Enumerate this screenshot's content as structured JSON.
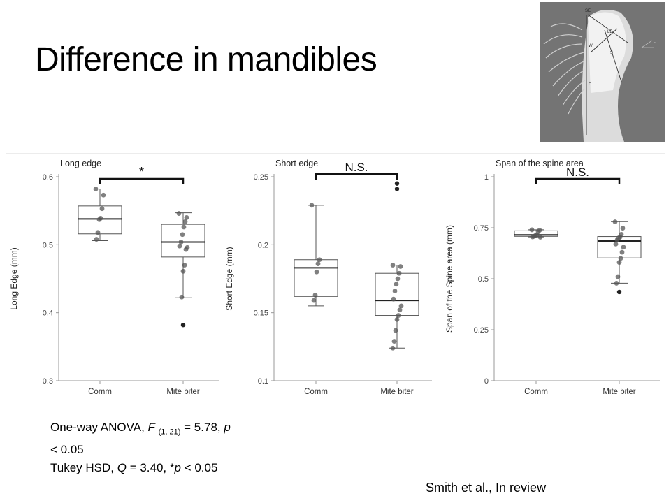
{
  "slide": {
    "title": "Difference in mandibles",
    "stats": {
      "anova_prefix": "One-way ANOVA, ",
      "anova_F": "F",
      "anova_df": "(1, 21)",
      "anova_value": " = 5.78, ",
      "anova_p": "p",
      "anova_p_value": " < 0.05",
      "tukey_prefix": "Tukey HSD, ",
      "tukey_Q": "Q",
      "tukey_value": " = 3.40, *",
      "tukey_p": "p",
      "tukey_p_value": " < 0.05"
    },
    "citation": "Smith et al., In review",
    "photo_labels": [
      "SE",
      "LE",
      "W",
      "S",
      "H",
      "L"
    ]
  },
  "chart_data": [
    {
      "type": "box",
      "title": "Long edge",
      "xlabel": "",
      "ylabel": "Long Edge (mm)",
      "ylim": [
        0.3,
        0.6
      ],
      "yticks": [
        "0.3",
        "0.4",
        "0.5",
        "0.6"
      ],
      "categories": [
        "Comm",
        "Mite biter"
      ],
      "significance": "*",
      "boxes": [
        {
          "min": 0.506,
          "q1": 0.516,
          "median": 0.538,
          "q3": 0.557,
          "max": 0.582,
          "outliers": [],
          "points": [
            0.582,
            0.573,
            0.553,
            0.539,
            0.537,
            0.518,
            0.508
          ]
        },
        {
          "min": 0.422,
          "q1": 0.482,
          "median": 0.504,
          "q3": 0.53,
          "max": 0.547,
          "outliers": [
            0.382
          ],
          "points": [
            0.546,
            0.54,
            0.534,
            0.526,
            0.515,
            0.504,
            0.498,
            0.496,
            0.493,
            0.47,
            0.461,
            0.423
          ]
        }
      ]
    },
    {
      "type": "box",
      "title": "Short edge",
      "xlabel": "",
      "ylabel": "Short Edge (mm)",
      "ylim": [
        0.1,
        0.25
      ],
      "yticks": [
        "0.1",
        "0.15",
        "0.2",
        "0.25"
      ],
      "categories": [
        "Comm",
        "Mite biter"
      ],
      "significance": "N.S.",
      "boxes": [
        {
          "min": 0.155,
          "q1": 0.162,
          "median": 0.183,
          "q3": 0.189,
          "max": 0.229,
          "outliers": [],
          "points": [
            0.229,
            0.189,
            0.186,
            0.18,
            0.163,
            0.159
          ]
        },
        {
          "min": 0.124,
          "q1": 0.148,
          "median": 0.159,
          "q3": 0.179,
          "max": 0.185,
          "outliers": [
            0.241,
            0.245
          ],
          "points": [
            0.185,
            0.184,
            0.179,
            0.175,
            0.171,
            0.166,
            0.16,
            0.155,
            0.152,
            0.148,
            0.145,
            0.137,
            0.129,
            0.124
          ]
        }
      ]
    },
    {
      "type": "box",
      "title": "Span of the spine area",
      "xlabel": "",
      "ylabel": "Span of the Spine area (mm)",
      "ylim": [
        0,
        1
      ],
      "yticks": [
        "0",
        "0.25",
        "0.5",
        "0.75",
        "1"
      ],
      "categories": [
        "Comm",
        "Mite biter"
      ],
      "significance": "N.S.",
      "boxes": [
        {
          "min": 0.705,
          "q1": 0.708,
          "median": 0.715,
          "q3": 0.735,
          "max": 0.74,
          "outliers": [],
          "points": [
            0.74,
            0.738,
            0.73,
            0.715,
            0.712,
            0.708,
            0.705,
            0.704
          ]
        },
        {
          "min": 0.478,
          "q1": 0.602,
          "median": 0.685,
          "q3": 0.707,
          "max": 0.78,
          "outliers": [
            0.435
          ],
          "points": [
            0.779,
            0.748,
            0.718,
            0.704,
            0.7,
            0.69,
            0.67,
            0.655,
            0.63,
            0.6,
            0.58,
            0.51,
            0.478
          ]
        }
      ]
    }
  ]
}
